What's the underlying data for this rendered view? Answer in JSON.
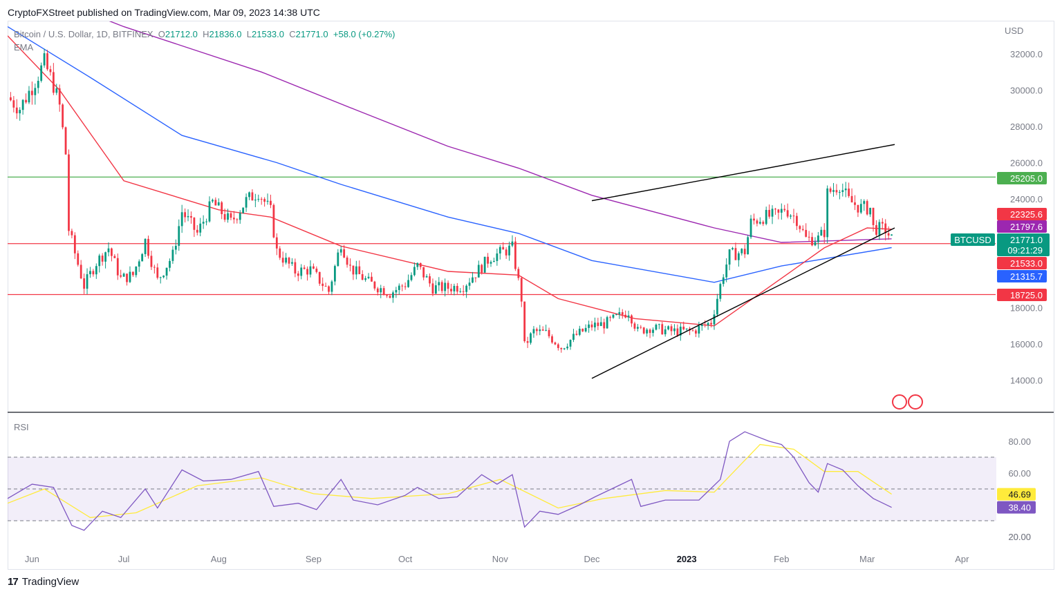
{
  "header": {
    "published": "CryptoFXStreet published on TradingView.com, Mar 09, 2023 14:38 UTC"
  },
  "legend": {
    "symbol": "Bitcoin / U.S. Dollar, 1D, BITFINEX",
    "o_label": "O",
    "o": "21712.0",
    "h_label": "H",
    "h": "21836.0",
    "l_label": "L",
    "l": "21533.0",
    "c_label": "C",
    "c": "21771.0",
    "change": "+58.0 (+0.27%)",
    "ema_label": "EMA"
  },
  "price_axis": {
    "currency": "USD",
    "ticks": [
      "32000.0",
      "30000.0",
      "28000.0",
      "26000.0",
      "24000.0",
      "18000.0",
      "16000.0",
      "14000.0"
    ]
  },
  "price_badges": [
    {
      "label": "25205.0",
      "color": "#4caf50",
      "value": 25205
    },
    {
      "label": "22325.6",
      "color": "#f23645",
      "value": 22325.6
    },
    {
      "label": "21797.6",
      "color": "#9c27b0",
      "value": 21797.6
    },
    {
      "label": "21533.0",
      "color": "#f23645",
      "value": 21533
    },
    {
      "label": "21315.7",
      "color": "#2962ff",
      "value": 21315.7
    },
    {
      "label": "18725.0",
      "color": "#f23645",
      "value": 18725
    }
  ],
  "last_price": {
    "symbol": "BTCUSD",
    "price": "21771.0",
    "countdown": "09:21:29",
    "color": "#089981"
  },
  "rsi": {
    "label": "RSI",
    "ticks": [
      "80.00",
      "60.00",
      "20.00"
    ],
    "rsi_badge": {
      "label": "38.40",
      "color": "#7e57c2",
      "value": 38.4
    },
    "ma_badge": {
      "label": "46.69",
      "color": "#ffeb3b",
      "value": 46.69
    },
    "upper_band": 70,
    "middle_band": 50,
    "lower_band": 30
  },
  "time_axis": [
    "Jun",
    "Jul",
    "Aug",
    "Sep",
    "Oct",
    "Nov",
    "Dec",
    "2023",
    "Feb",
    "Mar",
    "Apr"
  ],
  "footer": {
    "brand": "TradingView",
    "logo": "17"
  },
  "colors": {
    "up": "#089981",
    "down": "#f23645",
    "ema50": "#f23645",
    "ema100": "#2962ff",
    "ema200": "#9c27b0",
    "rsi": "#7e57c2",
    "rsi_ma": "#ffeb3b",
    "support_resistance": "#f23645",
    "resistance_top": "#4caf50",
    "channel": "#000000"
  },
  "chart_data": {
    "type": "candlestick",
    "symbol": "BTCUSD",
    "timeframe": "1D",
    "y_range": [
      13000,
      33200
    ],
    "x_range": [
      "2023-05-24",
      "2023-04-12"
    ],
    "horizontal_levels": [
      25205,
      21533,
      18725
    ],
    "channel": {
      "upper": [
        [
          "2022-12-01",
          23900
        ],
        [
          "2023-03-10",
          27000
        ]
      ],
      "lower": [
        [
          "2022-12-01",
          14100
        ],
        [
          "2023-03-10",
          22400
        ]
      ]
    },
    "close_path": [
      [
        "2022-05-24",
        29600
      ],
      [
        "2022-05-28",
        29000
      ],
      [
        "2022-06-01",
        30200
      ],
      [
        "2022-06-05",
        31500
      ],
      [
        "2022-06-08",
        30300
      ],
      [
        "2022-06-10",
        29100
      ],
      [
        "2022-06-12",
        26500
      ],
      [
        "2022-06-13",
        22300
      ],
      [
        "2022-06-15",
        21000
      ],
      [
        "2022-06-18",
        19200
      ],
      [
        "2022-06-22",
        20500
      ],
      [
        "2022-06-26",
        21300
      ],
      [
        "2022-06-30",
        19600
      ],
      [
        "2022-07-04",
        19800
      ],
      [
        "2022-07-08",
        21700
      ],
      [
        "2022-07-12",
        19500
      ],
      [
        "2022-07-17",
        20900
      ],
      [
        "2022-07-20",
        23300
      ],
      [
        "2022-07-25",
        22100
      ],
      [
        "2022-07-30",
        23800
      ],
      [
        "2022-08-05",
        22700
      ],
      [
        "2022-08-10",
        23900
      ],
      [
        "2022-08-14",
        24400
      ],
      [
        "2022-08-18",
        23300
      ],
      [
        "2022-08-20",
        21100
      ],
      [
        "2022-08-26",
        20000
      ],
      [
        "2022-08-31",
        20100
      ],
      [
        "2022-09-06",
        18900
      ],
      [
        "2022-09-10",
        21600
      ],
      [
        "2022-09-13",
        20200
      ],
      [
        "2022-09-19",
        19400
      ],
      [
        "2022-09-26",
        18800
      ],
      [
        "2022-10-01",
        19300
      ],
      [
        "2022-10-05",
        20300
      ],
      [
        "2022-10-10",
        19100
      ],
      [
        "2022-10-15",
        19100
      ],
      [
        "2022-10-20",
        19200
      ],
      [
        "2022-10-25",
        20100
      ],
      [
        "2022-10-29",
        20800
      ],
      [
        "2022-11-05",
        21300
      ],
      [
        "2022-11-08",
        18500
      ],
      [
        "2022-11-09",
        15900
      ],
      [
        "2022-11-12",
        16700
      ],
      [
        "2022-11-16",
        16600
      ],
      [
        "2022-11-21",
        15800
      ],
      [
        "2022-11-26",
        16500
      ],
      [
        "2022-12-01",
        17000
      ],
      [
        "2022-12-05",
        17100
      ],
      [
        "2022-12-13",
        17800
      ],
      [
        "2022-12-16",
        16700
      ],
      [
        "2022-12-20",
        16900
      ],
      [
        "2022-12-27",
        16700
      ],
      [
        "2023-01-03",
        16700
      ],
      [
        "2023-01-09",
        17200
      ],
      [
        "2023-01-13",
        19900
      ],
      [
        "2023-01-15",
        20900
      ],
      [
        "2023-01-20",
        21100
      ],
      [
        "2023-01-22",
        22700
      ],
      [
        "2023-01-26",
        23000
      ],
      [
        "2023-01-31",
        23100
      ],
      [
        "2023-02-02",
        23500
      ],
      [
        "2023-02-06",
        22900
      ],
      [
        "2023-02-09",
        21800
      ],
      [
        "2023-02-13",
        21800
      ],
      [
        "2023-02-15",
        22200
      ],
      [
        "2023-02-16",
        24300
      ],
      [
        "2023-02-20",
        24800
      ],
      [
        "2023-02-23",
        23900
      ],
      [
        "2023-02-27",
        23500
      ],
      [
        "2023-03-02",
        23500
      ],
      [
        "2023-03-03",
        22400
      ],
      [
        "2023-03-07",
        22300
      ],
      [
        "2023-03-09",
        21771
      ]
    ],
    "ema_50": [
      [
        "2022-05-24",
        33000
      ],
      [
        "2022-06-10",
        30000
      ],
      [
        "2022-07-01",
        25000
      ],
      [
        "2022-08-01",
        23400
      ],
      [
        "2022-08-18",
        23000
      ],
      [
        "2022-09-10",
        21400
      ],
      [
        "2022-10-15",
        20000
      ],
      [
        "2022-11-07",
        19800
      ],
      [
        "2022-11-20",
        18500
      ],
      [
        "2022-12-15",
        17400
      ],
      [
        "2023-01-10",
        17000
      ],
      [
        "2023-01-31",
        19500
      ],
      [
        "2023-02-15",
        21300
      ],
      [
        "2023-03-01",
        22400
      ],
      [
        "2023-03-09",
        22325.6
      ]
    ],
    "ema_100": [
      [
        "2022-05-24",
        33500
      ],
      [
        "2022-06-20",
        30700
      ],
      [
        "2022-07-20",
        27500
      ],
      [
        "2022-08-20",
        26000
      ],
      [
        "2022-09-10",
        24800
      ],
      [
        "2022-10-15",
        23000
      ],
      [
        "2022-11-07",
        22100
      ],
      [
        "2022-12-01",
        20600
      ],
      [
        "2023-01-10",
        19400
      ],
      [
        "2023-02-01",
        20300
      ],
      [
        "2023-03-09",
        21315.7
      ]
    ],
    "ema_200": [
      [
        "2022-05-24",
        36000
      ],
      [
        "2022-07-01",
        33500
      ],
      [
        "2022-08-15",
        31000
      ],
      [
        "2022-09-15",
        28900
      ],
      [
        "2022-10-15",
        26900
      ],
      [
        "2022-11-07",
        25700
      ],
      [
        "2022-12-01",
        24200
      ],
      [
        "2023-01-10",
        22400
      ],
      [
        "2023-02-01",
        21600
      ],
      [
        "2023-03-09",
        21797.6
      ]
    ],
    "rsi_path": [
      [
        "2022-05-24",
        44
      ],
      [
        "2022-06-01",
        53
      ],
      [
        "2022-06-08",
        51
      ],
      [
        "2022-06-14",
        27
      ],
      [
        "2022-06-18",
        24
      ],
      [
        "2022-06-24",
        36
      ],
      [
        "2022-06-30",
        32
      ],
      [
        "2022-07-08",
        50
      ],
      [
        "2022-07-12",
        38
      ],
      [
        "2022-07-20",
        62
      ],
      [
        "2022-07-27",
        55
      ],
      [
        "2022-08-05",
        56
      ],
      [
        "2022-08-14",
        61
      ],
      [
        "2022-08-19",
        39
      ],
      [
        "2022-08-27",
        41
      ],
      [
        "2022-09-02",
        37
      ],
      [
        "2022-09-10",
        56
      ],
      [
        "2022-09-14",
        43
      ],
      [
        "2022-09-22",
        40
      ],
      [
        "2022-10-01",
        46
      ],
      [
        "2022-10-05",
        51
      ],
      [
        "2022-10-12",
        44
      ],
      [
        "2022-10-18",
        45
      ],
      [
        "2022-10-26",
        59
      ],
      [
        "2022-10-31",
        53
      ],
      [
        "2022-11-05",
        59
      ],
      [
        "2022-11-09",
        26
      ],
      [
        "2022-11-14",
        36
      ],
      [
        "2022-11-20",
        34
      ],
      [
        "2022-11-27",
        40
      ],
      [
        "2022-12-02",
        45
      ],
      [
        "2022-12-14",
        56
      ],
      [
        "2022-12-17",
        39
      ],
      [
        "2022-12-25",
        43
      ],
      [
        "2023-01-05",
        43
      ],
      [
        "2023-01-12",
        56
      ],
      [
        "2023-01-15",
        80
      ],
      [
        "2023-01-20",
        86
      ],
      [
        "2023-01-28",
        80
      ],
      [
        "2023-02-01",
        78
      ],
      [
        "2023-02-05",
        70
      ],
      [
        "2023-02-10",
        54
      ],
      [
        "2023-02-13",
        48
      ],
      [
        "2023-02-16",
        66
      ],
      [
        "2023-02-21",
        62
      ],
      [
        "2023-02-26",
        52
      ],
      [
        "2023-03-03",
        44
      ],
      [
        "2023-03-09",
        38.4
      ]
    ],
    "rsi_ma_path": [
      [
        "2022-05-24",
        41
      ],
      [
        "2022-06-05",
        50
      ],
      [
        "2022-06-20",
        32
      ],
      [
        "2022-07-05",
        35
      ],
      [
        "2022-07-25",
        52
      ],
      [
        "2022-08-15",
        57
      ],
      [
        "2022-09-01",
        47
      ],
      [
        "2022-09-20",
        44
      ],
      [
        "2022-10-15",
        47
      ],
      [
        "2022-11-01",
        56
      ],
      [
        "2022-11-20",
        38
      ],
      [
        "2022-12-05",
        44
      ],
      [
        "2022-12-25",
        49
      ],
      [
        "2023-01-10",
        48
      ],
      [
        "2023-01-25",
        78
      ],
      [
        "2023-02-05",
        75
      ],
      [
        "2023-02-15",
        61
      ],
      [
        "2023-02-26",
        61
      ],
      [
        "2023-03-09",
        46.69
      ]
    ]
  }
}
